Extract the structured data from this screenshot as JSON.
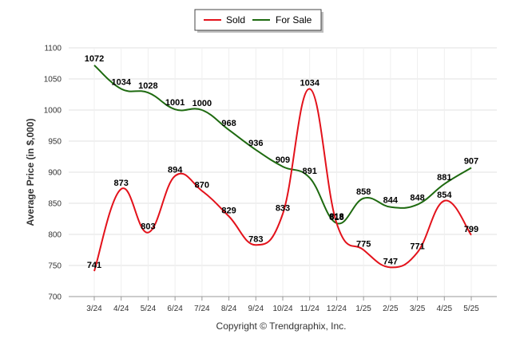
{
  "chart_data": {
    "type": "line",
    "categories": [
      "3/24",
      "4/24",
      "5/24",
      "6/24",
      "7/24",
      "8/24",
      "9/24",
      "10/24",
      "11/24",
      "12/24",
      "1/25",
      "2/25",
      "3/25",
      "4/25",
      "5/25"
    ],
    "series": [
      {
        "name": "Sold",
        "color": "#e3121b",
        "values": [
          741,
          873,
          803,
          894,
          870,
          829,
          783,
          833,
          1034,
          818,
          775,
          747,
          771,
          854,
          799
        ]
      },
      {
        "name": "For Sale",
        "color": "#1e6a10",
        "values": [
          1072,
          1034,
          1028,
          1001,
          1000,
          968,
          936,
          909,
          891,
          818,
          858,
          844,
          848,
          881,
          907
        ]
      }
    ],
    "ylabel": "Average Price (in $,000)",
    "yticks": [
      700,
      750,
      800,
      850,
      900,
      950,
      1000,
      1050,
      1100
    ],
    "ylim": [
      700,
      1100
    ],
    "grid": true,
    "legend_position": "top-center",
    "credit": "Copyright © Trendgraphix, Inc."
  }
}
